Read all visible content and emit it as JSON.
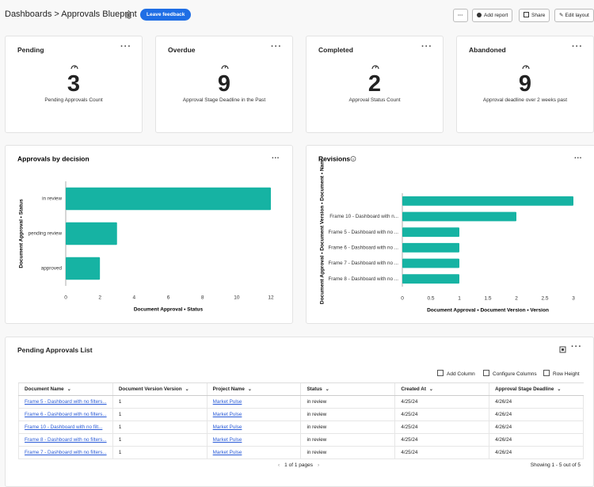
{
  "header": {
    "breadcrumb": "Dashboards",
    "title": "Approvals Blueprint",
    "feedback_button": "Leave feedback",
    "actions": [
      "Add report",
      "Share",
      "Edit layout"
    ]
  },
  "cards": [
    {
      "title": "Pending",
      "value": 3,
      "subtitle": "Pending Approvals Count"
    },
    {
      "title": "Overdue",
      "value": 9,
      "subtitle": "Approval Stage Deadline in the Past"
    },
    {
      "title": "Completed",
      "value": 2,
      "subtitle": "Approval Status Count"
    },
    {
      "title": "Abandoned",
      "value": 9,
      "subtitle": "Approval deadline over 2 weeks past"
    }
  ],
  "chart_data": [
    {
      "type": "bar",
      "orientation": "horizontal",
      "title": "Approvals by decision",
      "categories": [
        "in review",
        "pending review",
        "approved"
      ],
      "values": [
        12,
        3,
        2
      ],
      "color": "#16b3a3",
      "xlim": [
        0,
        12
      ],
      "xticks": [
        0,
        2,
        4,
        6,
        8,
        10,
        12
      ],
      "grid": false,
      "x_label": "Document Approval • Status",
      "y_label": "Document Approval • Status"
    },
    {
      "type": "bar",
      "orientation": "horizontal",
      "title": "Revisions",
      "categories": [
        null,
        "Frame 10 - Dashboard with n...",
        "Frame 5 - Dashboard with no ...",
        "Frame 6 - Dashboard with no ...",
        "Frame 7 - Dashboard with no ...",
        "Frame 8 - Dashboard with no ..."
      ],
      "values": [
        3,
        2,
        1,
        1,
        1,
        1
      ],
      "color": "#16b3a3",
      "xlim": [
        0,
        3
      ],
      "xticks": [
        0,
        0.5,
        1,
        1.5,
        2,
        2.5,
        3
      ],
      "grid": false,
      "x_label": "Document Approval • Document Version • Version",
      "y_label": "Document Approval • Document Version • Document • Nam"
    }
  ],
  "table": {
    "title": "Pending Approvals List",
    "toolbar": [
      "Add Column",
      "Configure Columns",
      "Row Height"
    ],
    "columns": [
      "Document Name",
      "Document Version Version",
      "Project Name",
      "Status",
      "Created At",
      "Approval Stage Deadline"
    ],
    "rows": [
      [
        "Frame 5 - Dashboard with no filters...",
        "1",
        "Market Pulse",
        "in review",
        "4/25/24",
        "4/26/24"
      ],
      [
        "Frame 6 - Dashboard with no filters...",
        "1",
        "Market Pulse",
        "in review",
        "4/25/24",
        "4/26/24"
      ],
      [
        "Frame 10 - Dashboard with no filt...",
        "1",
        "Market Pulse",
        "in review",
        "4/25/24",
        "4/26/24"
      ],
      [
        "Frame 8 - Dashboard with no filters...",
        "1",
        "Market Pulse",
        "in review",
        "4/25/24",
        "4/26/24"
      ],
      [
        "Frame 7 - Dashboard with no filters...",
        "1",
        "Market Pulse",
        "in review",
        "4/25/24",
        "4/26/24"
      ]
    ],
    "pagination": "1 of 1 pages",
    "summary": "Showing 1 - 5 out of 5"
  }
}
